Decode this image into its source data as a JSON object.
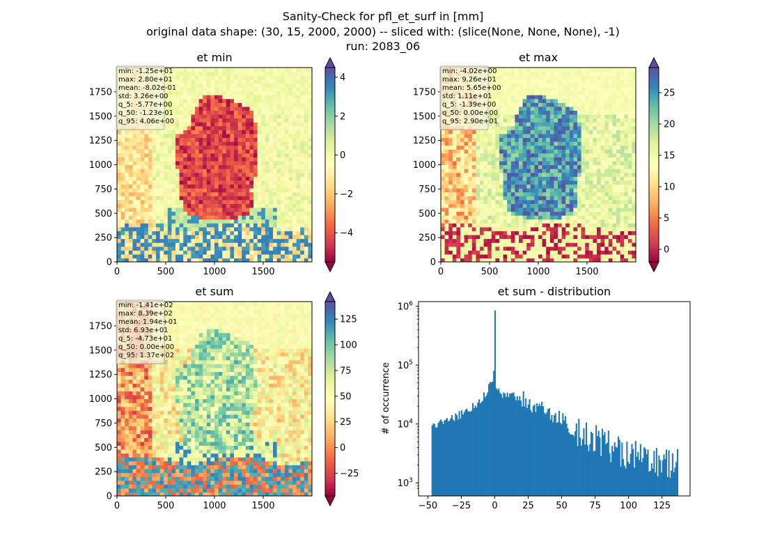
{
  "figure": {
    "title_line1": "Sanity-Check for pfl_et_surf in [mm]",
    "title_line2": "original data shape: (30, 15, 2000, 2000) -- sliced with: (slice(None, None, None), -1)",
    "title_line3": "run: 2083_06"
  },
  "colors": {
    "spectral": [
      "#9e0142",
      "#d53e4f",
      "#f46d43",
      "#fdae61",
      "#fee08b",
      "#ffffbf",
      "#e6f598",
      "#abdda4",
      "#66c2a5",
      "#3288bd",
      "#5e4fa2"
    ],
    "bar": "#1f77b4",
    "text_box_bg": "#f5f5dc",
    "text_box_border": "#aaaaaa"
  },
  "chart_data": [
    {
      "type": "heatmap",
      "title": "et min",
      "colormap": "Spectral",
      "x_ticks": [
        "0",
        "500",
        "1000",
        "1500"
      ],
      "y_ticks": [
        "0",
        "250",
        "500",
        "750",
        "1000",
        "1250",
        "1500",
        "1750"
      ],
      "xlim": [
        0,
        2000
      ],
      "ylim": [
        0,
        2000
      ],
      "colorbar": {
        "vmin": -5.5,
        "vmax": 4.5,
        "ticks": [
          -4,
          -2,
          0,
          2,
          4
        ],
        "tick_labels": [
          "−4",
          "−2",
          "0",
          "2",
          "4"
        ],
        "extend": "both"
      },
      "stats": [
        "min: -1.25e+01",
        "max: 2.80e+01",
        "mean: -8.02e-01",
        "std: 3.26e+00",
        "q_5: -5.77e+00",
        "q_50: -1.23e-01",
        "q_95: 4.06e+00"
      ]
    },
    {
      "type": "heatmap",
      "title": "et max",
      "colormap": "Spectral",
      "x_ticks": [
        "0",
        "500",
        "1000",
        "1500"
      ],
      "y_ticks": [
        "0",
        "250",
        "500",
        "750",
        "1000",
        "1250",
        "1500",
        "1750"
      ],
      "xlim": [
        0,
        2000
      ],
      "ylim": [
        0,
        2000
      ],
      "colorbar": {
        "vmin": -2,
        "vmax": 29,
        "ticks": [
          0,
          5,
          10,
          15,
          20,
          25
        ],
        "tick_labels": [
          "0",
          "5",
          "10",
          "15",
          "20",
          "25"
        ],
        "extend": "both"
      },
      "stats": [
        "min: -4.02e+00",
        "max: 9.26e+01",
        "mean: 5.65e+00",
        "std: 1.11e+01",
        "q_5: -1.39e+00",
        "q_50: 0.00e+00",
        "q_95: 2.90e+01"
      ]
    },
    {
      "type": "heatmap",
      "title": "et sum",
      "colormap": "Spectral",
      "x_ticks": [
        "0",
        "500",
        "1000",
        "1500"
      ],
      "y_ticks": [
        "0",
        "250",
        "500",
        "750",
        "1000",
        "1250",
        "1500",
        "1750"
      ],
      "xlim": [
        0,
        2000
      ],
      "ylim": [
        0,
        2000
      ],
      "colorbar": {
        "vmin": -47,
        "vmax": 142,
        "ticks": [
          -25,
          0,
          25,
          50,
          75,
          100,
          125
        ],
        "tick_labels": [
          "−25",
          "0",
          "25",
          "50",
          "75",
          "100",
          "125"
        ],
        "extend": "both"
      },
      "stats": [
        "min: -1.41e+02",
        "max: 8.39e+02",
        "mean: 1.94e+01",
        "std: 6.93e+01",
        "q_5: -4.73e+01",
        "q_50: 0.00e+00",
        "q_95: 1.37e+02"
      ]
    },
    {
      "type": "bar",
      "title": "et sum - distribution",
      "ylabel": "# of occurrence",
      "xlabel": "",
      "yscale": "log",
      "xlim": [
        -57,
        146
      ],
      "ylim": [
        600,
        1200000
      ],
      "x_ticks": [
        -50,
        -25,
        0,
        25,
        50,
        75,
        100,
        125
      ],
      "x_tick_labels": [
        "−50",
        "−25",
        "0",
        "25",
        "50",
        "75",
        "100",
        "125"
      ],
      "y_ticks": [
        1000,
        10000,
        100000,
        1000000
      ],
      "y_tick_labels": [
        {
          "base": "10",
          "exp": "3"
        },
        {
          "base": "10",
          "exp": "4"
        },
        {
          "base": "10",
          "exp": "5"
        },
        {
          "base": "10",
          "exp": "6"
        }
      ],
      "bin_range": [
        -47.3,
        137
      ],
      "peak": {
        "x": 0,
        "value": 850000
      },
      "envelope": [
        [
          -47.3,
          9000
        ],
        [
          -40,
          10500
        ],
        [
          -30,
          13000
        ],
        [
          -20,
          17000
        ],
        [
          -10,
          26000
        ],
        [
          -5,
          38000
        ],
        [
          -2,
          60000
        ],
        [
          -0.5,
          70000
        ],
        [
          0.5,
          37000
        ],
        [
          5,
          33000
        ],
        [
          10,
          31000
        ],
        [
          20,
          27000
        ],
        [
          30,
          20000
        ],
        [
          40,
          15000
        ],
        [
          50,
          11500
        ],
        [
          60,
          8000
        ],
        [
          75,
          5500
        ],
        [
          100,
          3000
        ],
        [
          125,
          2200
        ],
        [
          137,
          2000
        ]
      ]
    }
  ]
}
